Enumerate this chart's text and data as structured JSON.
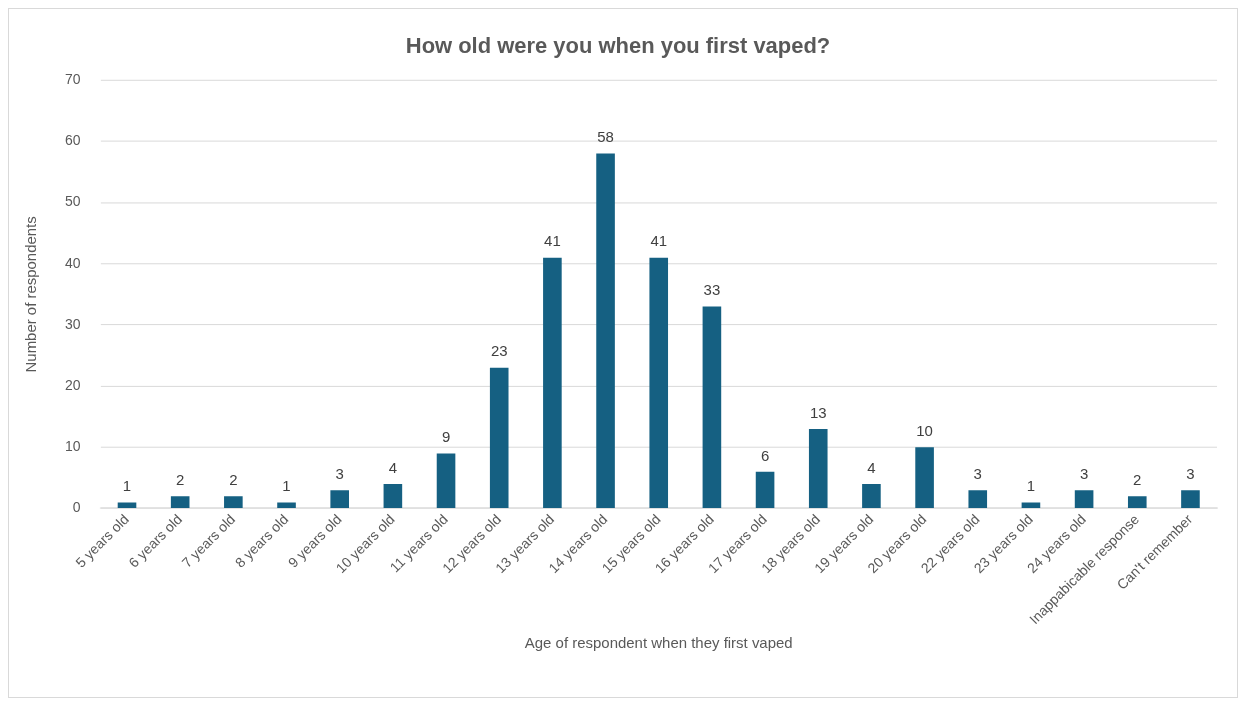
{
  "chart_data": {
    "type": "bar",
    "title": "How old were you when you first vaped?",
    "xlabel": "Age of respondent when they first vaped",
    "ylabel": "Number of respondents",
    "categories": [
      "5 years old",
      "6 years old",
      "7 years old",
      "8 years old",
      "9 years old",
      "10 years old",
      "11 years old",
      "12 years old",
      "13 years old",
      "14 years old",
      "15 years old",
      "16 years old",
      "17 years old",
      "18 years old",
      "19 years old",
      "20 years old",
      "22 years old",
      "23 years old",
      "24 years old",
      "Inappabicable response",
      "Can't remember"
    ],
    "values": [
      1,
      2,
      2,
      1,
      3,
      4,
      9,
      23,
      41,
      58,
      41,
      33,
      6,
      13,
      4,
      10,
      3,
      1,
      3,
      2,
      3
    ],
    "color": "#156082",
    "ylim": [
      0,
      70
    ],
    "yticks": [
      0,
      10,
      20,
      30,
      40,
      50,
      60,
      70
    ],
    "grid": "y",
    "data_labels": true,
    "legend": false
  }
}
